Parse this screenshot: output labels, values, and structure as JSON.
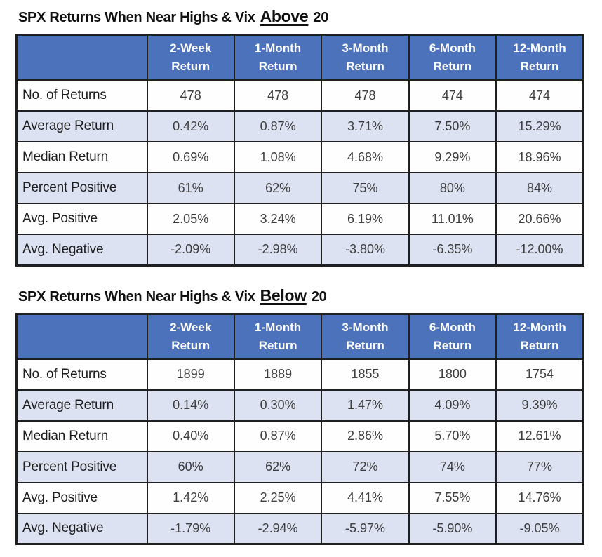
{
  "colors": {
    "header_bg": "#4c72bc",
    "header_text": "#ffffff",
    "row_light_bg": "#dce2f2",
    "row_white_bg": "#fefefe",
    "border": "#1f1f1f",
    "title_text": "#111111",
    "label_text": "#1d1d1d",
    "value_text": "#3d3d3d"
  },
  "chart_data": [
    {
      "type": "table",
      "title": "SPX Returns When Near Highs & Vix Above 20",
      "title_parts": {
        "prefix": "SPX Returns When Near Highs & Vix",
        "keyword": "Above",
        "suffix": "20"
      },
      "column_headers": [
        {
          "line1": "2-Week",
          "line2": "Return"
        },
        {
          "line1": "1-Month",
          "line2": "Return"
        },
        {
          "line1": "3-Month",
          "line2": "Return"
        },
        {
          "line1": "6-Month",
          "line2": "Return"
        },
        {
          "line1": "12-Month",
          "line2": "Return"
        }
      ],
      "rows": [
        {
          "label": "No. of Returns",
          "values": [
            "478",
            "478",
            "478",
            "474",
            "474"
          ]
        },
        {
          "label": "Average Return",
          "values": [
            "0.42%",
            "0.87%",
            "3.71%",
            "7.50%",
            "15.29%"
          ]
        },
        {
          "label": "Median Return",
          "values": [
            "0.69%",
            "1.08%",
            "4.68%",
            "9.29%",
            "18.96%"
          ]
        },
        {
          "label": "Percent Positive",
          "values": [
            "61%",
            "62%",
            "75%",
            "80%",
            "84%"
          ]
        },
        {
          "label": "Avg. Positive",
          "values": [
            "2.05%",
            "3.24%",
            "6.19%",
            "11.01%",
            "20.66%"
          ]
        },
        {
          "label": "Avg. Negative",
          "values": [
            "-2.09%",
            "-2.98%",
            "-3.80%",
            "-6.35%",
            "-12.00%"
          ]
        }
      ]
    },
    {
      "type": "table",
      "title": "SPX Returns When Near Highs & Vix Below 20",
      "title_parts": {
        "prefix": "SPX Returns When Near Highs & Vix",
        "keyword": "Below",
        "suffix": "20"
      },
      "column_headers": [
        {
          "line1": "2-Week",
          "line2": "Return"
        },
        {
          "line1": "1-Month",
          "line2": "Return"
        },
        {
          "line1": "3-Month",
          "line2": "Return"
        },
        {
          "line1": "6-Month",
          "line2": "Return"
        },
        {
          "line1": "12-Month",
          "line2": "Return"
        }
      ],
      "rows": [
        {
          "label": "No. of Returns",
          "values": [
            "1899",
            "1889",
            "1855",
            "1800",
            "1754"
          ]
        },
        {
          "label": "Average Return",
          "values": [
            "0.14%",
            "0.30%",
            "1.47%",
            "4.09%",
            "9.39%"
          ]
        },
        {
          "label": "Median Return",
          "values": [
            "0.40%",
            "0.87%",
            "2.86%",
            "5.70%",
            "12.61%"
          ]
        },
        {
          "label": "Percent Positive",
          "values": [
            "60%",
            "62%",
            "72%",
            "74%",
            "77%"
          ]
        },
        {
          "label": "Avg. Positive",
          "values": [
            "1.42%",
            "2.25%",
            "4.41%",
            "7.55%",
            "14.76%"
          ]
        },
        {
          "label": "Avg. Negative",
          "values": [
            "-1.79%",
            "-2.94%",
            "-5.97%",
            "-5.90%",
            "-9.05%"
          ]
        }
      ]
    }
  ]
}
